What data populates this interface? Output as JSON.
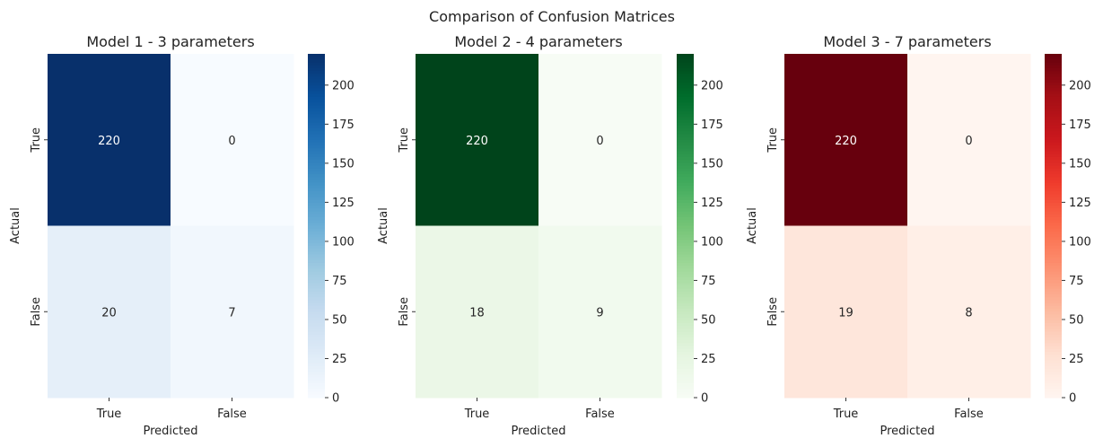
{
  "figure": {
    "title": "Comparison of Confusion Matrices"
  },
  "chart_data": [
    {
      "type": "heatmap",
      "title": "Model 1 - 3 parameters",
      "xlabel": "Predicted",
      "ylabel": "Actual",
      "x_categories": [
        "True",
        "False"
      ],
      "y_categories": [
        "True",
        "False"
      ],
      "values": [
        [
          220,
          0
        ],
        [
          20,
          7
        ]
      ],
      "colormap": "Blues",
      "color_low": "#f7fbff",
      "color_high": "#08306b",
      "colorbar_range": [
        0,
        220
      ],
      "colorbar_ticks": [
        0,
        25,
        50,
        75,
        100,
        125,
        150,
        175,
        200
      ]
    },
    {
      "type": "heatmap",
      "title": "Model 2 - 4 parameters",
      "xlabel": "Predicted",
      "ylabel": "Actual",
      "x_categories": [
        "True",
        "False"
      ],
      "y_categories": [
        "True",
        "False"
      ],
      "values": [
        [
          220,
          0
        ],
        [
          18,
          9
        ]
      ],
      "colormap": "Greens",
      "color_low": "#f7fcf5",
      "color_high": "#00441b",
      "colorbar_range": [
        0,
        220
      ],
      "colorbar_ticks": [
        0,
        25,
        50,
        75,
        100,
        125,
        150,
        175,
        200
      ]
    },
    {
      "type": "heatmap",
      "title": "Model 3 - 7 parameters",
      "xlabel": "Predicted",
      "ylabel": "Actual",
      "x_categories": [
        "True",
        "False"
      ],
      "y_categories": [
        "True",
        "False"
      ],
      "values": [
        [
          220,
          0
        ],
        [
          19,
          8
        ]
      ],
      "colormap": "Reds",
      "color_low": "#fff5f0",
      "color_high": "#67000d",
      "colorbar_range": [
        0,
        220
      ],
      "colorbar_ticks": [
        0,
        25,
        50,
        75,
        100,
        125,
        150,
        175,
        200
      ]
    }
  ]
}
